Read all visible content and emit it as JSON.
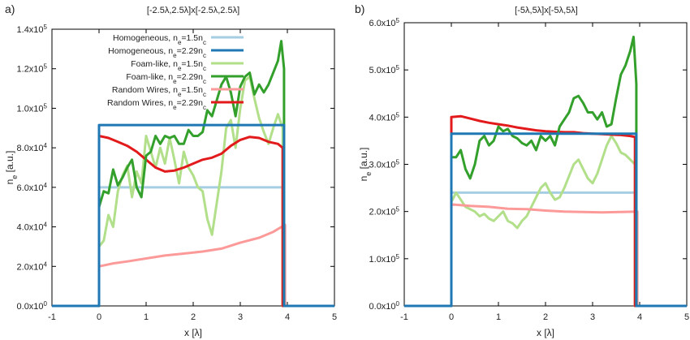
{
  "figure": {
    "panels": [
      {
        "label": "a)",
        "title": "[-2.5λ,2.5λ]x[-2.5λ,2.5λ]"
      },
      {
        "label": "b)",
        "title": "[-5λ,5λ]x[-5λ,5λ]"
      }
    ]
  },
  "chart_data": [
    {
      "panel": "a)",
      "type": "line",
      "title": "[-2.5λ,2.5λ]x[-2.5λ,2.5λ]",
      "xlabel": "x [λ]",
      "ylabel": "n_e [a.u.]",
      "xlim": [
        -1,
        5
      ],
      "ylim": [
        0,
        140000
      ],
      "xticks": [
        -1,
        0,
        1,
        2,
        3,
        4,
        5
      ],
      "xtick_labels": [
        "-1",
        "0",
        "1",
        "2",
        "3",
        "4",
        "5"
      ],
      "yticks": [
        0,
        20000,
        40000,
        60000,
        80000,
        100000,
        120000,
        140000
      ],
      "ytick_labels": [
        {
          "m": "0.0x10",
          "e": "0"
        },
        {
          "m": "2.0x10",
          "e": "4"
        },
        {
          "m": "4.0x10",
          "e": "4"
        },
        {
          "m": "6.0x10",
          "e": "4"
        },
        {
          "m": "8.0x10",
          "e": "4"
        },
        {
          "m": "1.0x10",
          "e": "5"
        },
        {
          "m": "1.2x10",
          "e": "5"
        },
        {
          "m": "1.4x10",
          "e": "5"
        }
      ],
      "legend_position": "top-left",
      "series": [
        {
          "name": "Homogeneous, ne=1.5nc",
          "legend": {
            "a": "Homogeneous, n",
            "s1": "e",
            "b": "=1.5n",
            "s2": "c"
          },
          "color": "#a6cee3",
          "x": [
            -1,
            0,
            0,
            3.9,
            3.9,
            5
          ],
          "y": [
            0,
            0,
            60000,
            60000,
            0,
            0
          ]
        },
        {
          "name": "Homogeneous, ne=2.29nc",
          "legend": {
            "a": "Homogeneous, n",
            "s1": "e",
            "b": "=2.29n",
            "s2": "c"
          },
          "color": "#1f78b4",
          "x": [
            -1,
            0,
            0,
            3.93,
            3.93,
            5
          ],
          "y": [
            0,
            0,
            91500,
            91500,
            0,
            0
          ]
        },
        {
          "name": "Foam-like, ne=1.5nc",
          "legend": {
            "a": "Foam-like, n",
            "s1": "e",
            "b": "=1.5n",
            "s2": "c"
          },
          "color": "#b2df8a",
          "x": [
            -1,
            0,
            0,
            0.1,
            0.2,
            0.3,
            0.4,
            0.5,
            0.6,
            0.7,
            0.8,
            0.9,
            1.0,
            1.1,
            1.2,
            1.3,
            1.4,
            1.5,
            1.6,
            1.7,
            1.8,
            1.9,
            2.0,
            2.1,
            2.2,
            2.3,
            2.4,
            2.5,
            2.6,
            2.7,
            2.8,
            2.9,
            3.0,
            3.1,
            3.2,
            3.3,
            3.4,
            3.5,
            3.6,
            3.7,
            3.8,
            3.9,
            3.9,
            5
          ],
          "y": [
            0,
            0,
            30000,
            33000,
            46000,
            40000,
            58000,
            66000,
            71000,
            55000,
            68000,
            62000,
            86000,
            78000,
            70000,
            80000,
            72000,
            85000,
            74000,
            62000,
            78000,
            70000,
            66000,
            60000,
            58000,
            44000,
            36000,
            52000,
            68000,
            90000,
            94000,
            80000,
            100000,
            114000,
            116000,
            105000,
            95000,
            88000,
            82000,
            90000,
            97000,
            90000,
            0,
            0
          ]
        },
        {
          "name": "Foam-like, ne=2.29nc",
          "legend": {
            "a": "Foam-like, n",
            "s1": "e",
            "b": "=2.29n",
            "s2": "c"
          },
          "color": "#33a02c",
          "x": [
            -1,
            0,
            0,
            0.1,
            0.2,
            0.3,
            0.4,
            0.5,
            0.6,
            0.7,
            0.8,
            0.9,
            1.0,
            1.1,
            1.2,
            1.3,
            1.4,
            1.5,
            1.6,
            1.7,
            1.8,
            1.9,
            2.0,
            2.1,
            2.2,
            2.3,
            2.4,
            2.5,
            2.6,
            2.7,
            2.8,
            2.9,
            3.0,
            3.1,
            3.2,
            3.3,
            3.4,
            3.5,
            3.6,
            3.7,
            3.8,
            3.87,
            3.93,
            3.93,
            5
          ],
          "y": [
            0,
            0,
            50000,
            58000,
            57000,
            69000,
            61000,
            65000,
            70000,
            74000,
            60000,
            55000,
            76000,
            78000,
            86000,
            82000,
            86000,
            85000,
            86000,
            82000,
            82000,
            89000,
            86000,
            86000,
            88000,
            99000,
            96000,
            104000,
            112000,
            116000,
            108000,
            96000,
            111000,
            116000,
            118000,
            107000,
            112000,
            108000,
            112000,
            118000,
            124000,
            134000,
            120000,
            0,
            0
          ]
        },
        {
          "name": "Random Wires, ne=1.5nc",
          "legend": {
            "a": "Random Wires, n",
            "s1": "e",
            "b": "=1.5n",
            "s2": "c"
          },
          "color": "#fb9a99",
          "x": [
            -1,
            0,
            0,
            0.3,
            0.6,
            1.0,
            1.4,
            1.8,
            2.2,
            2.6,
            3.0,
            3.4,
            3.7,
            3.95,
            3.95,
            5
          ],
          "y": [
            0,
            0,
            20000,
            21500,
            22500,
            24000,
            25500,
            26500,
            27500,
            29000,
            32000,
            34500,
            37500,
            41000,
            0,
            0
          ]
        },
        {
          "name": "Random Wires, ne=2.29nc",
          "legend": {
            "a": "Random Wires, n",
            "s1": "e",
            "b": "=2.29n",
            "s2": "c"
          },
          "color": "#e31a1c",
          "x": [
            -1,
            0,
            0,
            0.2,
            0.4,
            0.6,
            0.8,
            1.0,
            1.2,
            1.4,
            1.6,
            1.8,
            2.0,
            2.2,
            2.4,
            2.6,
            2.8,
            3.0,
            3.2,
            3.4,
            3.6,
            3.8,
            3.9,
            3.9,
            5
          ],
          "y": [
            0,
            0,
            86000,
            85000,
            83000,
            81000,
            78000,
            74000,
            70000,
            68000,
            68500,
            70000,
            72000,
            74000,
            75000,
            77000,
            81000,
            84000,
            85500,
            85000,
            83000,
            82000,
            80000,
            0,
            0
          ]
        }
      ]
    },
    {
      "panel": "b)",
      "type": "line",
      "title": "[-5λ,5λ]x[-5λ,5λ]",
      "xlabel": "x [λ]",
      "ylabel": "n_e [a.u.]",
      "xlim": [
        -1,
        5
      ],
      "ylim": [
        0,
        600000
      ],
      "xticks": [
        -1,
        0,
        1,
        2,
        3,
        4,
        5
      ],
      "xtick_labels": [
        "-1",
        "0",
        "1",
        "2",
        "3",
        "4",
        "5"
      ],
      "yticks": [
        0,
        100000,
        200000,
        300000,
        400000,
        500000,
        600000
      ],
      "ytick_labels": [
        {
          "m": "0.0x10",
          "e": "0"
        },
        {
          "m": "1.0x10",
          "e": "5"
        },
        {
          "m": "2.0x10",
          "e": "5"
        },
        {
          "m": "3.0x10",
          "e": "5"
        },
        {
          "m": "4.0x10",
          "e": "5"
        },
        {
          "m": "5.0x10",
          "e": "5"
        },
        {
          "m": "6.0x10",
          "e": "5"
        }
      ],
      "series": [
        {
          "name": "Homogeneous, ne=1.5nc",
          "color": "#a6cee3",
          "x": [
            -1,
            0,
            0,
            3.9,
            3.9,
            5
          ],
          "y": [
            0,
            0,
            240000,
            240000,
            0,
            0
          ]
        },
        {
          "name": "Homogeneous, ne=2.29nc",
          "color": "#1f78b4",
          "x": [
            -1,
            0,
            0,
            3.93,
            3.93,
            5
          ],
          "y": [
            0,
            0,
            365000,
            365000,
            0,
            0
          ]
        },
        {
          "name": "Foam-like, ne=1.5nc",
          "color": "#b2df8a",
          "x": [
            -1,
            0,
            0,
            0.1,
            0.2,
            0.3,
            0.4,
            0.5,
            0.6,
            0.7,
            0.8,
            0.9,
            1.0,
            1.1,
            1.2,
            1.3,
            1.4,
            1.5,
            1.6,
            1.7,
            1.8,
            1.9,
            2.0,
            2.1,
            2.2,
            2.3,
            2.4,
            2.5,
            2.6,
            2.7,
            2.8,
            2.9,
            3.0,
            3.1,
            3.2,
            3.3,
            3.4,
            3.5,
            3.6,
            3.7,
            3.8,
            3.9,
            3.9,
            5
          ],
          "y": [
            0,
            0,
            220000,
            240000,
            225000,
            210000,
            205000,
            200000,
            190000,
            195000,
            185000,
            180000,
            190000,
            200000,
            180000,
            175000,
            165000,
            180000,
            190000,
            210000,
            230000,
            250000,
            260000,
            240000,
            225000,
            230000,
            250000,
            275000,
            300000,
            310000,
            290000,
            270000,
            260000,
            280000,
            310000,
            340000,
            360000,
            345000,
            325000,
            320000,
            310000,
            300000,
            0,
            0
          ]
        },
        {
          "name": "Foam-like, ne=2.29nc",
          "color": "#33a02c",
          "x": [
            -1,
            0,
            0,
            0.1,
            0.2,
            0.3,
            0.4,
            0.5,
            0.6,
            0.7,
            0.8,
            0.9,
            1.0,
            1.1,
            1.2,
            1.3,
            1.4,
            1.5,
            1.6,
            1.7,
            1.8,
            1.9,
            2.0,
            2.1,
            2.2,
            2.3,
            2.4,
            2.5,
            2.6,
            2.7,
            2.8,
            2.9,
            3.0,
            3.1,
            3.2,
            3.3,
            3.4,
            3.5,
            3.6,
            3.7,
            3.8,
            3.87,
            3.93,
            3.93,
            5
          ],
          "y": [
            0,
            0,
            315000,
            315000,
            330000,
            290000,
            270000,
            300000,
            350000,
            360000,
            340000,
            350000,
            380000,
            370000,
            375000,
            360000,
            355000,
            345000,
            340000,
            350000,
            330000,
            360000,
            350000,
            360000,
            340000,
            380000,
            395000,
            410000,
            440000,
            445000,
            430000,
            410000,
            410000,
            395000,
            410000,
            380000,
            385000,
            440000,
            490000,
            510000,
            540000,
            570000,
            470000,
            0,
            0
          ]
        },
        {
          "name": "Random Wires, ne=1.5nc",
          "color": "#fb9a99",
          "x": [
            -1,
            0,
            0,
            0.4,
            0.8,
            1.2,
            1.6,
            2.0,
            2.4,
            2.8,
            3.2,
            3.6,
            3.95,
            3.95,
            5
          ],
          "y": [
            0,
            0,
            215000,
            212000,
            210000,
            206000,
            205000,
            202000,
            200000,
            199000,
            198000,
            199000,
            200000,
            0,
            0
          ]
        },
        {
          "name": "Random Wires, ne=2.29nc",
          "color": "#e31a1c",
          "x": [
            -1,
            0,
            0,
            0.2,
            0.4,
            0.6,
            0.8,
            1.0,
            1.2,
            1.4,
            1.6,
            1.8,
            2.0,
            2.2,
            2.4,
            2.6,
            2.8,
            3.0,
            3.2,
            3.4,
            3.6,
            3.8,
            3.9,
            3.9,
            5
          ],
          "y": [
            0,
            0,
            400000,
            402000,
            397000,
            392000,
            388000,
            385000,
            382000,
            378000,
            375000,
            372000,
            370000,
            369000,
            368000,
            368000,
            366000,
            365000,
            364000,
            363000,
            362000,
            360000,
            358000,
            0,
            0
          ]
        }
      ]
    }
  ]
}
